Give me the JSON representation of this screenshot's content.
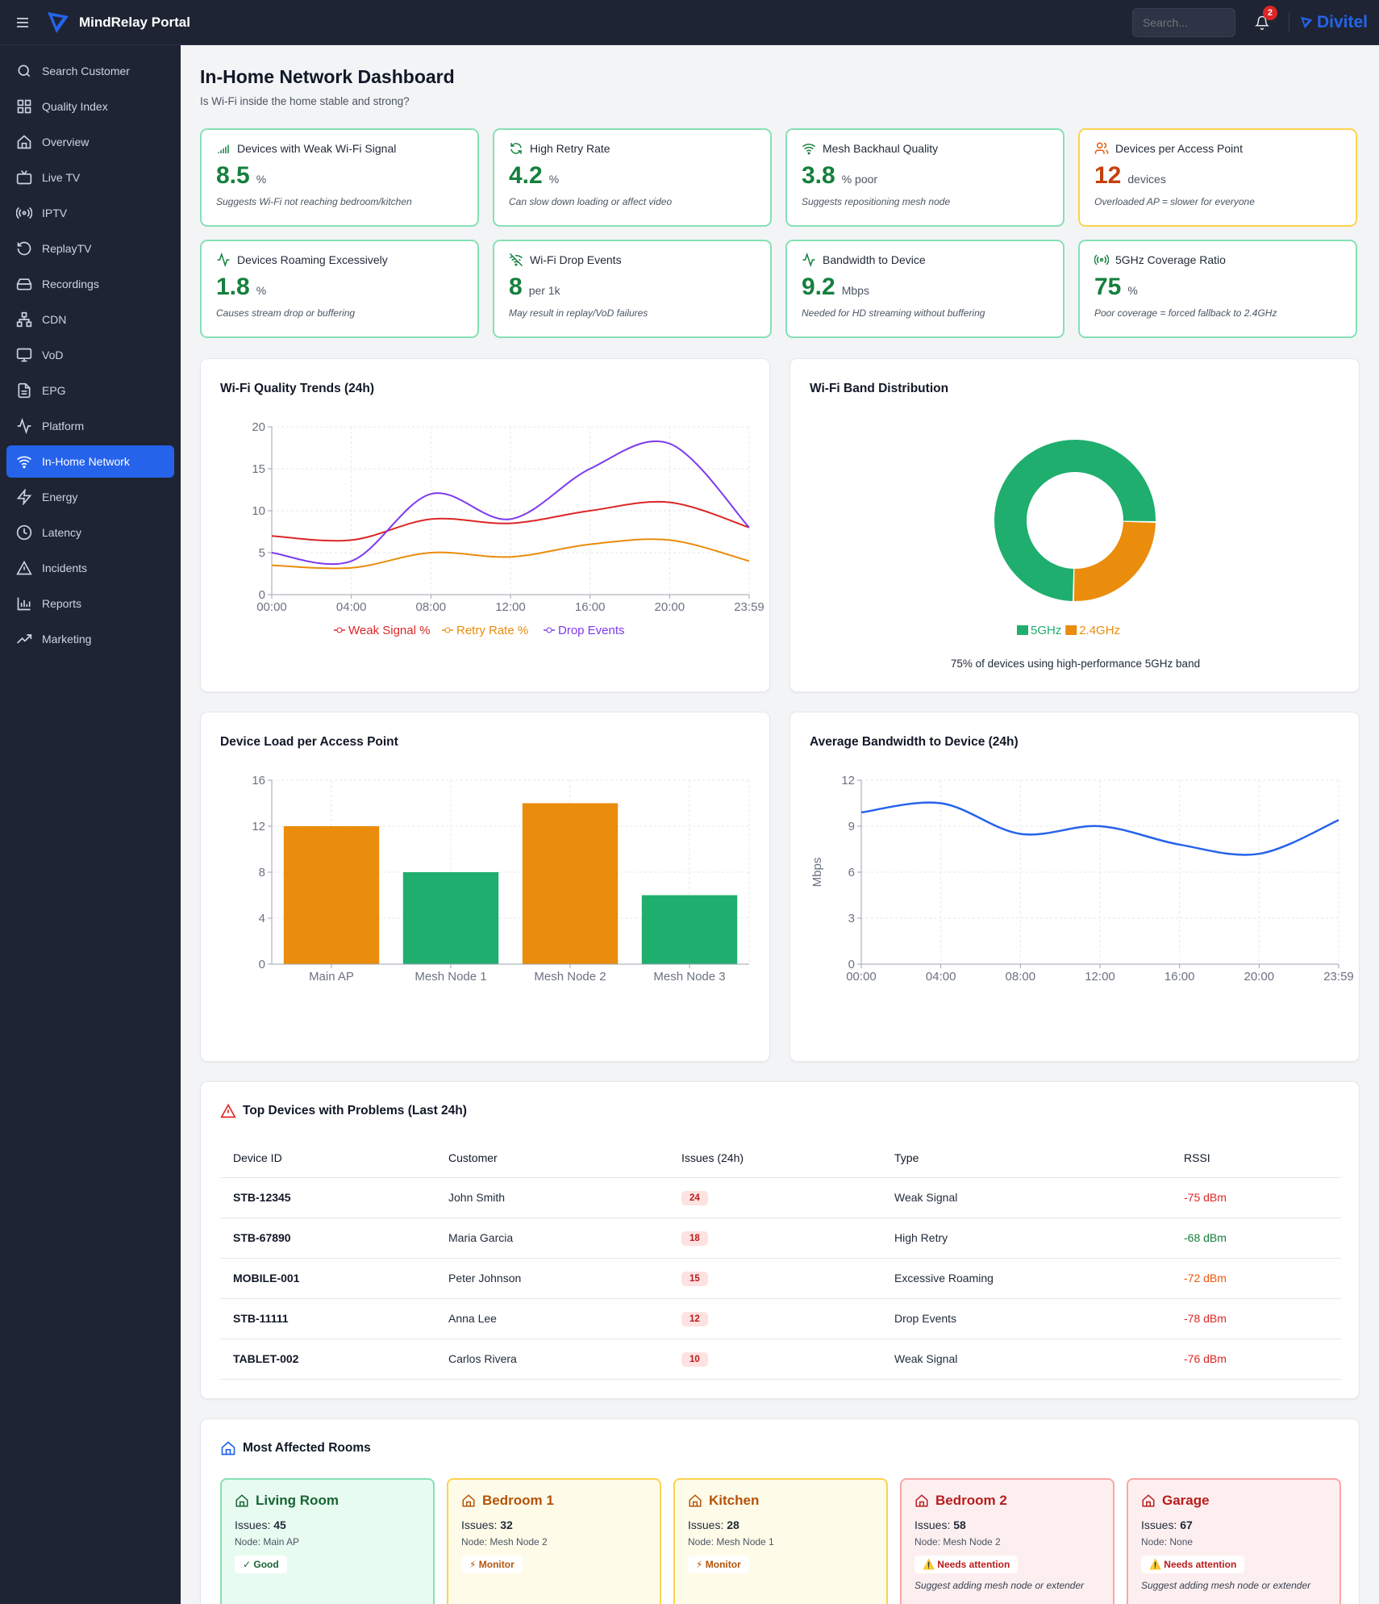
{
  "app": {
    "title": "MindRelay Portal",
    "search_placeholder": "Search...",
    "notification_count": "2",
    "partner": "Divitel"
  },
  "sidebar": {
    "items": [
      {
        "label": "Search Customer"
      },
      {
        "label": "Quality Index"
      },
      {
        "label": "Overview"
      },
      {
        "label": "Live TV"
      },
      {
        "label": "IPTV"
      },
      {
        "label": "ReplayTV"
      },
      {
        "label": "Recordings"
      },
      {
        "label": "CDN"
      },
      {
        "label": "VoD"
      },
      {
        "label": "EPG"
      },
      {
        "label": "Platform"
      },
      {
        "label": "In-Home Network"
      },
      {
        "label": "Energy"
      },
      {
        "label": "Latency"
      },
      {
        "label": "Incidents"
      },
      {
        "label": "Reports"
      },
      {
        "label": "Marketing"
      }
    ],
    "active": "In-Home Network"
  },
  "page": {
    "title": "In-Home Network Dashboard",
    "subtitle": "Is Wi-Fi inside the home stable and strong?"
  },
  "kpis": [
    {
      "title": "Devices with Weak Wi-Fi Signal",
      "value": "8.5",
      "unit": "%",
      "note": "Suggests Wi-Fi not reaching bedroom/kitchen",
      "icon": "signal-bars-icon",
      "status": "good"
    },
    {
      "title": "High Retry Rate",
      "value": "4.2",
      "unit": "%",
      "note": "Can slow down loading or affect video",
      "icon": "refresh-icon",
      "status": "good"
    },
    {
      "title": "Mesh Backhaul Quality",
      "value": "3.8",
      "unit": "% poor",
      "note": "Suggests repositioning mesh node",
      "icon": "wifi-icon",
      "status": "good"
    },
    {
      "title": "Devices per Access Point",
      "value": "12",
      "unit": "devices",
      "note": "Overloaded AP = slower for everyone",
      "icon": "users-icon",
      "status": "warn"
    },
    {
      "title": "Devices Roaming Excessively",
      "value": "1.8",
      "unit": "%",
      "note": "Causes stream drop or buffering",
      "icon": "activity-icon",
      "status": "good"
    },
    {
      "title": "Wi-Fi Drop Events",
      "value": "8",
      "unit": "per 1k",
      "note": "May result in replay/VoD failures",
      "icon": "wifi-off-icon",
      "status": "good"
    },
    {
      "title": "Bandwidth to Device",
      "value": "9.2",
      "unit": "Mbps",
      "note": "Needed for HD streaming without buffering",
      "icon": "activity-icon",
      "status": "good"
    },
    {
      "title": "5GHz Coverage Ratio",
      "value": "75",
      "unit": "%",
      "note": "Poor coverage = forced fallback to 2.4GHz",
      "icon": "broadcast-icon",
      "status": "good"
    }
  ],
  "charts": {
    "trends_title": "Wi-Fi Quality Trends (24h)",
    "band_title": "Wi-Fi Band Distribution",
    "band_caption": "75% of devices using high-performance 5GHz band",
    "load_title": "Device Load per Access Point",
    "bandwidth_title": "Average Bandwidth to Device (24h)"
  },
  "chart_data": [
    {
      "type": "line",
      "title": "Wi-Fi Quality Trends (24h)",
      "x": [
        "00:00",
        "04:00",
        "08:00",
        "12:00",
        "16:00",
        "20:00",
        "23:59"
      ],
      "ylim": [
        0,
        20
      ],
      "yticks": [
        0,
        5,
        10,
        15,
        20
      ],
      "grid": true,
      "legend": "bottom",
      "series": [
        {
          "name": "Weak Signal %",
          "color": "#dc2626",
          "values": [
            7.0,
            6.5,
            9.0,
            8.5,
            10.0,
            11.0,
            8.0
          ]
        },
        {
          "name": "Retry Rate %",
          "color": "#ea8c0c",
          "values": [
            3.5,
            3.2,
            5.0,
            4.5,
            6.0,
            6.5,
            4.0
          ]
        },
        {
          "name": "Drop Events",
          "color": "#7c3aed",
          "values": [
            5.0,
            4.0,
            12.0,
            9.0,
            15.0,
            18.0,
            8.0
          ]
        }
      ]
    },
    {
      "type": "pie",
      "title": "Wi-Fi Band Distribution",
      "categories": [
        "5GHz",
        "2.4GHz"
      ],
      "values": [
        75,
        25
      ],
      "colors": [
        "#1fae6e",
        "#ea8c0c"
      ],
      "legend": "bottom"
    },
    {
      "type": "bar",
      "title": "Device Load per Access Point",
      "categories": [
        "Main AP",
        "Mesh Node 1",
        "Mesh Node 2",
        "Mesh Node 3"
      ],
      "values": [
        12,
        8,
        14,
        6
      ],
      "colors": [
        "#ea8c0c",
        "#1fae6e",
        "#ea8c0c",
        "#1fae6e"
      ],
      "ylim": [
        0,
        16
      ],
      "yticks": [
        0,
        4,
        8,
        12,
        16
      ],
      "grid": true
    },
    {
      "type": "line",
      "title": "Average Bandwidth to Device (24h)",
      "x": [
        "00:00",
        "04:00",
        "08:00",
        "12:00",
        "16:00",
        "20:00",
        "23:59"
      ],
      "ylabel": "Mbps",
      "ylim": [
        0,
        12
      ],
      "yticks": [
        0,
        3,
        6,
        9,
        12
      ],
      "grid": true,
      "series": [
        {
          "color": "#2563eb",
          "values": [
            9.9,
            10.5,
            8.5,
            9.0,
            7.8,
            7.2,
            9.4
          ]
        }
      ]
    }
  ],
  "problems": {
    "title": "Top Devices with Problems (Last 24h)",
    "columns": [
      "Device ID",
      "Customer",
      "Issues (24h)",
      "Type",
      "RSSI"
    ],
    "rows": [
      {
        "device": "STB-12345",
        "customer": "John Smith",
        "issues": "24",
        "type": "Weak Signal",
        "rssi": "-75 dBm",
        "rssi_color": "#dc2626"
      },
      {
        "device": "STB-67890",
        "customer": "Maria Garcia",
        "issues": "18",
        "type": "High Retry",
        "rssi": "-68 dBm",
        "rssi_color": "#15803d"
      },
      {
        "device": "MOBILE-001",
        "customer": "Peter Johnson",
        "issues": "15",
        "type": "Excessive Roaming",
        "rssi": "-72 dBm",
        "rssi_color": "#ea580c"
      },
      {
        "device": "STB-11111",
        "customer": "Anna Lee",
        "issues": "12",
        "type": "Drop Events",
        "rssi": "-78 dBm",
        "rssi_color": "#dc2626"
      },
      {
        "device": "TABLET-002",
        "customer": "Carlos Rivera",
        "issues": "10",
        "type": "Weak Signal",
        "rssi": "-76 dBm",
        "rssi_color": "#dc2626"
      }
    ]
  },
  "rooms": {
    "title": "Most Affected Rooms",
    "items": [
      {
        "name": "Living Room",
        "issues_label": "Issues:",
        "issues": "45",
        "node": "Node: Main AP",
        "badge": "✓ Good",
        "suggestion": "",
        "status": "good"
      },
      {
        "name": "Bedroom 1",
        "issues_label": "Issues:",
        "issues": "32",
        "node": "Node: Mesh Node 2",
        "badge": "⚡ Monitor",
        "suggestion": "",
        "status": "monitor"
      },
      {
        "name": "Kitchen",
        "issues_label": "Issues:",
        "issues": "28",
        "node": "Node: Mesh Node 1",
        "badge": "⚡ Monitor",
        "suggestion": "",
        "status": "monitor"
      },
      {
        "name": "Bedroom 2",
        "issues_label": "Issues:",
        "issues": "58",
        "node": "Node: Mesh Node 2",
        "badge": "⚠️ Needs attention",
        "suggestion": "Suggest adding mesh node or extender",
        "status": "bad"
      },
      {
        "name": "Garage",
        "issues_label": "Issues:",
        "issues": "67",
        "node": "Node: None",
        "badge": "⚠️ Needs attention",
        "suggestion": "Suggest adding mesh node or extender",
        "status": "bad"
      }
    ]
  },
  "colors": {
    "accent": "#2563eb",
    "good": "#15803d",
    "warn": "#c2410c",
    "sidebar": "#1e2433"
  }
}
